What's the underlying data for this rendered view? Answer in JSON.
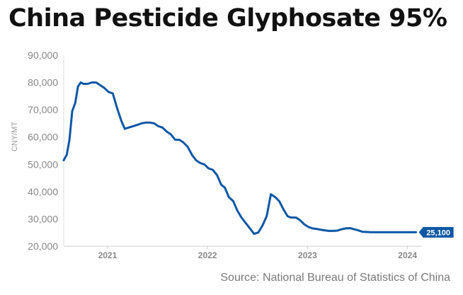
{
  "title": "China Pesticide Glyphosate 95%",
  "source": "Source: National Bureau of Statistics of China",
  "chart_data": {
    "type": "line",
    "ylabel": "CNY/MT",
    "ylim": [
      20000,
      90000
    ],
    "yticks": [
      20000,
      30000,
      40000,
      50000,
      60000,
      70000,
      80000,
      90000
    ],
    "ytick_labels": [
      "20,000",
      "30,000",
      "40,000",
      "50,000",
      "60,000",
      "70,000",
      "80,000",
      "90,000"
    ],
    "xlim": [
      "2020-07-25",
      "2024-02-20"
    ],
    "xticks": [
      "2021-01-01",
      "2022-01-01",
      "2023-01-01",
      "2024-01-01"
    ],
    "xtick_labels": [
      "2021",
      "2022",
      "2023",
      "2024"
    ],
    "grid": false,
    "line_color": "#0b57a4",
    "end_label": "25,100",
    "series": [
      {
        "x": [
          "2020-07-25",
          "2020-08-05",
          "2020-08-15",
          "2020-08-25",
          "2020-09-05",
          "2020-09-15",
          "2020-09-25",
          "2020-10-05",
          "2020-10-20",
          "2020-11-05",
          "2020-11-20",
          "2020-12-05",
          "2020-12-20",
          "2021-01-05",
          "2021-01-20",
          "2021-02-05",
          "2021-02-20",
          "2021-03-05",
          "2021-03-20",
          "2021-04-05",
          "2021-04-20",
          "2021-05-05",
          "2021-05-20",
          "2021-06-05",
          "2021-06-20",
          "2021-07-05",
          "2021-07-20",
          "2021-08-05",
          "2021-08-20",
          "2021-09-05",
          "2021-09-20",
          "2021-10-05",
          "2021-10-20",
          "2021-11-05",
          "2021-11-20",
          "2021-12-05",
          "2021-12-20",
          "2022-01-05",
          "2022-01-20",
          "2022-02-05",
          "2022-02-20",
          "2022-03-05",
          "2022-03-20",
          "2022-04-05",
          "2022-04-20",
          "2022-05-05",
          "2022-05-20",
          "2022-06-05",
          "2022-06-20",
          "2022-07-05",
          "2022-07-20",
          "2022-08-05",
          "2022-08-20",
          "2022-09-05",
          "2022-09-20",
          "2022-10-05",
          "2022-10-20",
          "2022-11-01",
          "2022-11-10",
          "2022-11-20",
          "2022-12-05",
          "2022-12-20",
          "2023-01-05",
          "2023-01-20",
          "2023-02-05",
          "2023-02-20",
          "2023-03-05",
          "2023-03-20",
          "2023-04-05",
          "2023-04-20",
          "2023-05-05",
          "2023-05-20",
          "2023-06-05",
          "2023-06-20",
          "2023-07-05",
          "2023-07-20",
          "2023-08-05",
          "2023-08-20",
          "2023-09-05",
          "2023-09-20",
          "2023-10-05",
          "2023-10-20",
          "2023-11-05",
          "2023-11-20",
          "2023-12-05",
          "2023-12-20",
          "2024-01-05",
          "2024-01-20",
          "2024-02-01"
        ],
        "y": [
          51500,
          53500,
          59000,
          69500,
          72500,
          78500,
          80000,
          79500,
          79500,
          80000,
          80000,
          79000,
          78000,
          76500,
          76000,
          70500,
          66000,
          63000,
          63500,
          64000,
          64500,
          65000,
          65300,
          65300,
          65000,
          64000,
          63500,
          62000,
          61000,
          59000,
          59000,
          58000,
          56500,
          53500,
          51500,
          50500,
          50000,
          48500,
          48000,
          46000,
          42500,
          41500,
          38000,
          36500,
          33000,
          30500,
          28500,
          26500,
          24500,
          25000,
          27500,
          31000,
          39000,
          38000,
          36500,
          33500,
          31000,
          30500,
          30500,
          30500,
          29500,
          28000,
          27000,
          26500,
          26300,
          26000,
          25800,
          25600,
          25600,
          25700,
          26200,
          26500,
          26600,
          26200,
          25800,
          25300,
          25200,
          25100,
          25100,
          25100,
          25100,
          25100,
          25100,
          25100,
          25100,
          25100,
          25100,
          25100,
          25100
        ]
      }
    ]
  }
}
